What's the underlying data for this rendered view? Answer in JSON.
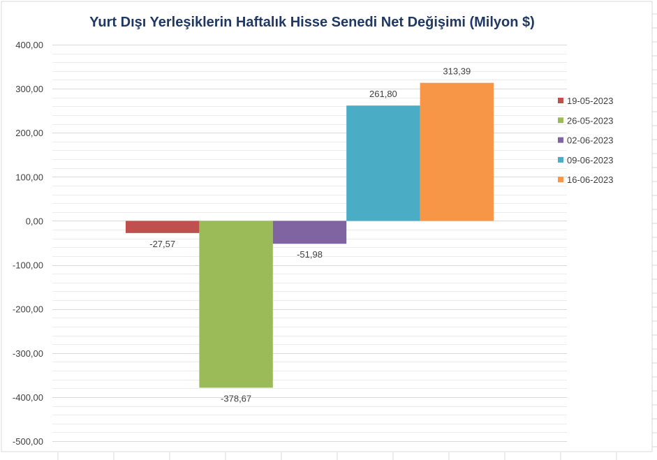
{
  "chart_data": {
    "type": "bar",
    "title": "Yurt Dışı Yerleşiklerin Haftalık Hisse Senedi Net Değişimi (Milyon $)",
    "xlabel": "",
    "ylabel": "",
    "ylim": [
      -500,
      400
    ],
    "yticks": [
      400,
      300,
      200,
      100,
      0,
      -100,
      -200,
      -300,
      -400,
      -500
    ],
    "ytick_labels": [
      "400,00",
      "300,00",
      "200,00",
      "100,00",
      "0,00",
      "-100,00",
      "-200,00",
      "-300,00",
      "-400,00",
      "-500,00"
    ],
    "grid": true,
    "legend_position": "right",
    "series": [
      {
        "name": "19-05-2023",
        "value": -27.57,
        "label": "-27,57",
        "color": "#c0504d"
      },
      {
        "name": "26-05-2023",
        "value": -378.67,
        "label": "-378,67",
        "color": "#9bbb59"
      },
      {
        "name": "02-06-2023",
        "value": -51.98,
        "label": "-51,98",
        "color": "#8064a2"
      },
      {
        "name": "09-06-2023",
        "value": 261.8,
        "label": "261,80",
        "color": "#4bacc6"
      },
      {
        "name": "16-06-2023",
        "value": 313.39,
        "label": "313,39",
        "color": "#f79646"
      }
    ]
  }
}
